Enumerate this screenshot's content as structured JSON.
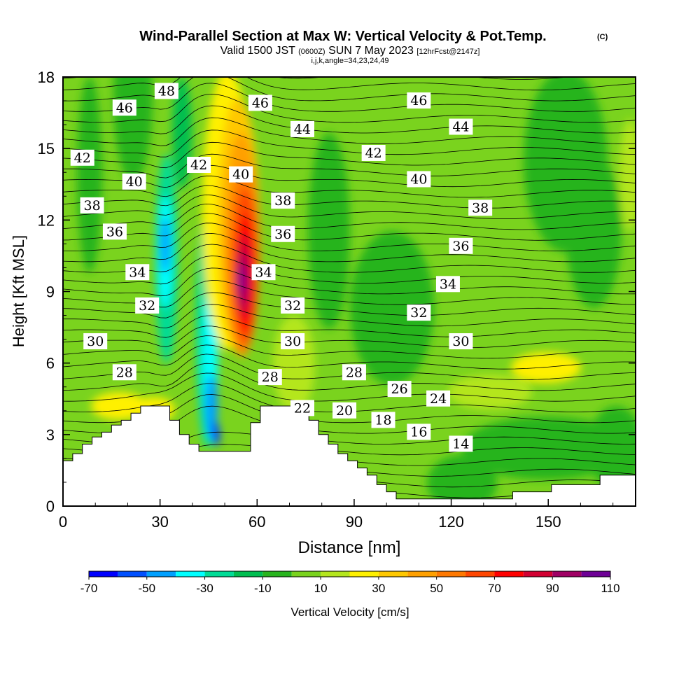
{
  "header": {
    "title": "Wind-Parallel Section at Max W: Vertical Velocity & Pot.Temp.",
    "title_mark": "(C)",
    "valid_prefix": "Valid 1500 JST",
    "valid_utc": "(0600Z)",
    "valid_date": "SUN 7 May 2023",
    "forecast": "[12hrFcst@2147z]",
    "indices": "i,j,k,angle=34,23,24,49"
  },
  "chart_data": {
    "type": "heatmap",
    "xlabel": "Distance [nm]",
    "ylabel": "Height [Kft MSL]",
    "xlim": [
      0,
      177
    ],
    "ylim": [
      0,
      18
    ],
    "x_ticks": [
      "0",
      "30",
      "60",
      "90",
      "120",
      "150"
    ],
    "x_tick_values": [
      0,
      30,
      60,
      90,
      120,
      150
    ],
    "y_ticks": [
      "0",
      "3",
      "6",
      "9",
      "12",
      "15",
      "18"
    ],
    "y_tick_values": [
      0,
      3,
      6,
      9,
      12,
      15,
      18
    ],
    "colorbar": {
      "label": "Vertical Velocity [cm/s]",
      "tick_labels": [
        "-70",
        "-50",
        "-30",
        "-10",
        "10",
        "30",
        "50",
        "70",
        "90",
        "110"
      ],
      "bounds": [
        -70,
        -60,
        -50,
        -40,
        -30,
        -20,
        -10,
        0,
        10,
        20,
        30,
        40,
        50,
        60,
        70,
        80,
        90,
        100,
        110
      ],
      "colors": [
        "#0000ff",
        "#0050ff",
        "#00a0ff",
        "#00ffff",
        "#00dc96",
        "#00be50",
        "#28b41e",
        "#7ad31e",
        "#b4e61e",
        "#fff000",
        "#ffc800",
        "#ffa000",
        "#ff7800",
        "#ff4600",
        "#ff0000",
        "#d20032",
        "#a00064",
        "#6e0096"
      ]
    },
    "terrain_kft": [
      [
        0,
        1.9
      ],
      [
        3,
        1.9
      ],
      [
        3,
        2.2
      ],
      [
        6,
        2.2
      ],
      [
        6,
        2.6
      ],
      [
        9,
        2.6
      ],
      [
        9,
        2.9
      ],
      [
        12,
        2.9
      ],
      [
        12,
        3.1
      ],
      [
        15,
        3.1
      ],
      [
        15,
        3.4
      ],
      [
        18,
        3.4
      ],
      [
        18,
        3.6
      ],
      [
        21,
        3.6
      ],
      [
        21,
        3.9
      ],
      [
        24,
        3.9
      ],
      [
        24,
        4.2
      ],
      [
        33,
        4.2
      ],
      [
        33,
        3.6
      ],
      [
        36,
        3.6
      ],
      [
        36,
        3.0
      ],
      [
        39,
        3.0
      ],
      [
        39,
        2.6
      ],
      [
        42,
        2.6
      ],
      [
        42,
        2.3
      ],
      [
        58,
        2.3
      ],
      [
        58,
        3.5
      ],
      [
        61,
        3.5
      ],
      [
        61,
        4.2
      ],
      [
        72,
        4.2
      ],
      [
        72,
        4.0
      ],
      [
        76,
        4.0
      ],
      [
        76,
        3.6
      ],
      [
        79,
        3.6
      ],
      [
        79,
        3.0
      ],
      [
        82,
        3.0
      ],
      [
        82,
        2.6
      ],
      [
        85,
        2.6
      ],
      [
        85,
        2.2
      ],
      [
        88,
        2.2
      ],
      [
        88,
        1.9
      ],
      [
        91,
        1.9
      ],
      [
        91,
        1.6
      ],
      [
        94,
        1.6
      ],
      [
        94,
        1.3
      ],
      [
        97,
        1.3
      ],
      [
        97,
        0.9
      ],
      [
        100,
        0.9
      ],
      [
        100,
        0.6
      ],
      [
        103,
        0.6
      ],
      [
        103,
        0.3
      ],
      [
        139,
        0.3
      ],
      [
        139,
        0.6
      ],
      [
        151,
        0.6
      ],
      [
        151,
        0.9
      ],
      [
        166,
        0.9
      ],
      [
        166,
        1.3
      ],
      [
        177,
        1.3
      ]
    ],
    "theta_contour_labels": [
      {
        "value": "48",
        "x": 32,
        "y": 17.4
      },
      {
        "value": "46",
        "x": 19,
        "y": 16.7
      },
      {
        "value": "46",
        "x": 61,
        "y": 16.9
      },
      {
        "value": "46",
        "x": 110,
        "y": 17.0
      },
      {
        "value": "44",
        "x": 74,
        "y": 15.8
      },
      {
        "value": "44",
        "x": 123,
        "y": 15.9
      },
      {
        "value": "42",
        "x": 6,
        "y": 14.6
      },
      {
        "value": "42",
        "x": 42,
        "y": 14.3
      },
      {
        "value": "42",
        "x": 96,
        "y": 14.8
      },
      {
        "value": "40",
        "x": 22,
        "y": 13.6
      },
      {
        "value": "40",
        "x": 55,
        "y": 13.9
      },
      {
        "value": "40",
        "x": 110,
        "y": 13.7
      },
      {
        "value": "38",
        "x": 9,
        "y": 12.6
      },
      {
        "value": "38",
        "x": 68,
        "y": 12.8
      },
      {
        "value": "38",
        "x": 129,
        "y": 12.5
      },
      {
        "value": "36",
        "x": 16,
        "y": 11.5
      },
      {
        "value": "36",
        "x": 68,
        "y": 11.4
      },
      {
        "value": "36",
        "x": 123,
        "y": 10.9
      },
      {
        "value": "34",
        "x": 23,
        "y": 9.8
      },
      {
        "value": "34",
        "x": 62,
        "y": 9.8
      },
      {
        "value": "34",
        "x": 119,
        "y": 9.3
      },
      {
        "value": "32",
        "x": 26,
        "y": 8.4
      },
      {
        "value": "32",
        "x": 71,
        "y": 8.4
      },
      {
        "value": "32",
        "x": 110,
        "y": 8.1
      },
      {
        "value": "30",
        "x": 10,
        "y": 6.9
      },
      {
        "value": "30",
        "x": 71,
        "y": 6.9
      },
      {
        "value": "30",
        "x": 123,
        "y": 6.9
      },
      {
        "value": "28",
        "x": 19,
        "y": 5.6
      },
      {
        "value": "28",
        "x": 64,
        "y": 5.4
      },
      {
        "value": "28",
        "x": 90,
        "y": 5.6
      },
      {
        "value": "26",
        "x": 104,
        "y": 4.9
      },
      {
        "value": "24",
        "x": 116,
        "y": 4.5
      },
      {
        "value": "22",
        "x": 74,
        "y": 4.1
      },
      {
        "value": "20",
        "x": 87,
        "y": 4.0
      },
      {
        "value": "18",
        "x": 99,
        "y": 3.6
      },
      {
        "value": "16",
        "x": 110,
        "y": 3.1
      },
      {
        "value": "14",
        "x": 123,
        "y": 2.6
      }
    ]
  }
}
